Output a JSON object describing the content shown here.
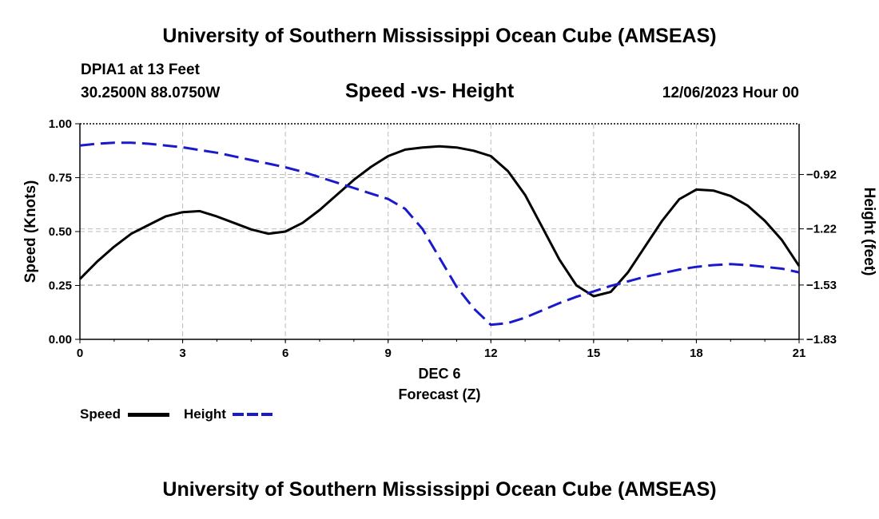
{
  "header": {
    "title": "University of Southern Mississippi Ocean Cube (AMSEAS)",
    "station": "DPIA1 at 13 Feet",
    "coords": "30.2500N  88.0750W",
    "subtitle": "Speed -vs- Height",
    "datetime": "12/06/2023 Hour 00"
  },
  "footer": {
    "title": "University of Southern Mississippi Ocean Cube (AMSEAS)"
  },
  "legend": {
    "speed_label": "Speed",
    "height_label": "Height"
  },
  "chart_data": {
    "type": "line",
    "title": "Speed -vs- Height",
    "xlabel": "Forecast (Z)",
    "xlabel_date": "DEC 6",
    "ylabel": "Speed (Knots)",
    "y2label": "Height (feet)",
    "xlim": [
      0,
      21
    ],
    "ylim": [
      0,
      1
    ],
    "y2lim": [
      -1.83,
      -0.64
    ],
    "xticks": [
      0,
      3,
      6,
      9,
      12,
      15,
      18,
      21
    ],
    "xtick_labels": [
      "0",
      "3",
      "6",
      "9",
      "12",
      "15",
      "18",
      "21"
    ],
    "yticks": [
      0,
      0.25,
      0.5,
      0.75,
      1.0
    ],
    "ytick_labels": [
      "0.00",
      "0.25",
      "0.50",
      "0.75",
      "1.00"
    ],
    "y2ticks": [
      -0.92,
      -1.22,
      -1.53,
      -1.83
    ],
    "y2tick_labels": [
      "−0.92",
      "−1.22",
      "−1.53",
      "−1.83"
    ],
    "grid": true,
    "colors": {
      "speed": "#000000",
      "height": "#1a1acc",
      "grid": "#bbbbbb"
    },
    "series": [
      {
        "name": "Speed",
        "axis": "left",
        "style": "solid",
        "x": [
          0,
          0.5,
          1,
          1.5,
          2,
          2.5,
          3,
          3.5,
          4,
          4.5,
          5,
          5.5,
          6,
          6.5,
          7,
          7.5,
          8,
          8.5,
          9,
          9.5,
          10,
          10.5,
          11,
          11.5,
          12,
          12.5,
          13,
          13.5,
          14,
          14.5,
          15,
          15.5,
          16,
          16.5,
          17,
          17.5,
          18,
          18.5,
          19,
          19.5,
          20,
          20.5,
          21
        ],
        "values": [
          0.28,
          0.36,
          0.43,
          0.49,
          0.53,
          0.57,
          0.59,
          0.595,
          0.57,
          0.54,
          0.51,
          0.49,
          0.5,
          0.54,
          0.6,
          0.67,
          0.74,
          0.8,
          0.85,
          0.88,
          0.89,
          0.895,
          0.89,
          0.875,
          0.85,
          0.78,
          0.67,
          0.52,
          0.37,
          0.25,
          0.2,
          0.22,
          0.31,
          0.43,
          0.55,
          0.65,
          0.695,
          0.69,
          0.665,
          0.62,
          0.55,
          0.46,
          0.34
        ]
      },
      {
        "name": "Height",
        "axis": "right",
        "style": "dashed",
        "x": [
          0,
          0.5,
          1,
          1.5,
          2,
          2.5,
          3,
          3.5,
          4,
          4.5,
          5,
          5.5,
          6,
          6.5,
          7,
          7.5,
          8,
          8.5,
          9,
          9.5,
          10,
          10.5,
          11,
          11.5,
          12,
          12.5,
          13,
          13.5,
          14,
          14.5,
          15,
          15.5,
          16,
          16.5,
          17,
          17.5,
          18,
          18.5,
          19,
          19.5,
          20,
          20.5,
          21
        ],
        "values": [
          -0.76,
          -0.75,
          -0.745,
          -0.745,
          -0.75,
          -0.76,
          -0.77,
          -0.785,
          -0.8,
          -0.82,
          -0.84,
          -0.86,
          -0.88,
          -0.905,
          -0.935,
          -0.965,
          -0.995,
          -1.025,
          -1.055,
          -1.11,
          -1.22,
          -1.38,
          -1.54,
          -1.66,
          -1.75,
          -1.74,
          -1.71,
          -1.67,
          -1.63,
          -1.595,
          -1.565,
          -1.535,
          -1.51,
          -1.485,
          -1.465,
          -1.445,
          -1.43,
          -1.42,
          -1.415,
          -1.42,
          -1.43,
          -1.44,
          -1.46
        ]
      }
    ]
  }
}
